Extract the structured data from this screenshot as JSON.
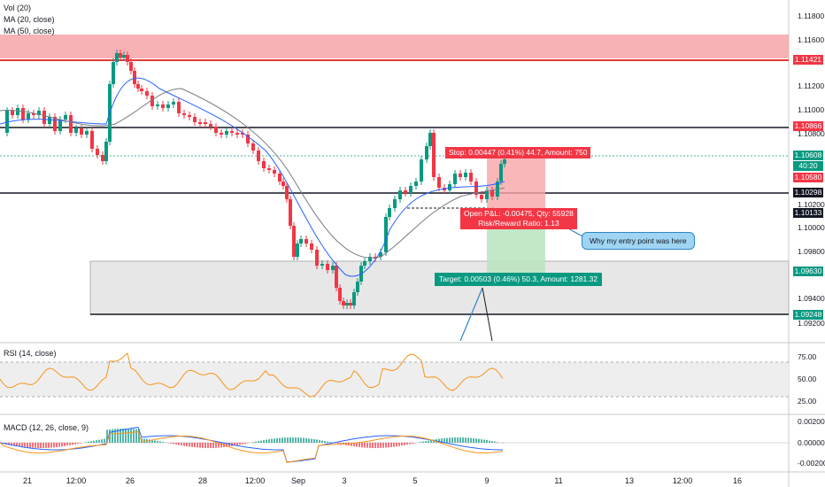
{
  "indicators": {
    "vol": "Vol (20)",
    "ma20": "MA (20, close)",
    "ma50": "MA (50, close)",
    "rsi": "RSI (14, close)",
    "macd": "MACD (12, 26, close, 9)"
  },
  "price_axis": {
    "ticks": [
      "1.11800",
      "1.11600",
      "1.11200",
      "1.11000",
      "1.10800",
      "1.10200",
      "1.10000",
      "1.09800",
      "1.09400",
      "1.09200"
    ],
    "tags": {
      "resistance": "1.11421",
      "level_upper": "1.10866",
      "current": "1.10608",
      "countdown": "40:20",
      "stop": "1.10580",
      "mid_level": "1.10298",
      "entry": "1.10133",
      "target": "1.09630",
      "support": "1.09248"
    }
  },
  "rsi_axis": [
    "75.00",
    "50.00",
    "25.00"
  ],
  "macd_axis": [
    "0.00200",
    "0.00000",
    "-0.00200"
  ],
  "time_axis": [
    "21",
    "12:00",
    "26",
    "28",
    "12:00",
    "Sep",
    "3",
    "5",
    "9",
    "11",
    "13",
    "12:00",
    "16"
  ],
  "position": {
    "stop_label": "Stop: 0.00447 (0.41%) 44.7, Amount: 750",
    "pnl_label": "Open P&L: -0.00475, Qty: 55928",
    "rr_label": "Risk/Reward Ratio: 1.13",
    "target_label": "Target: 0.00503 (0.46%) 50.3, Amount: 1281.32"
  },
  "annotation": "Why my entry point was here",
  "colors": {
    "up": "#089981",
    "down": "#f23645",
    "ma20": "#2962ff",
    "ma50": "#787b86",
    "rsi": "#f7931a"
  }
}
